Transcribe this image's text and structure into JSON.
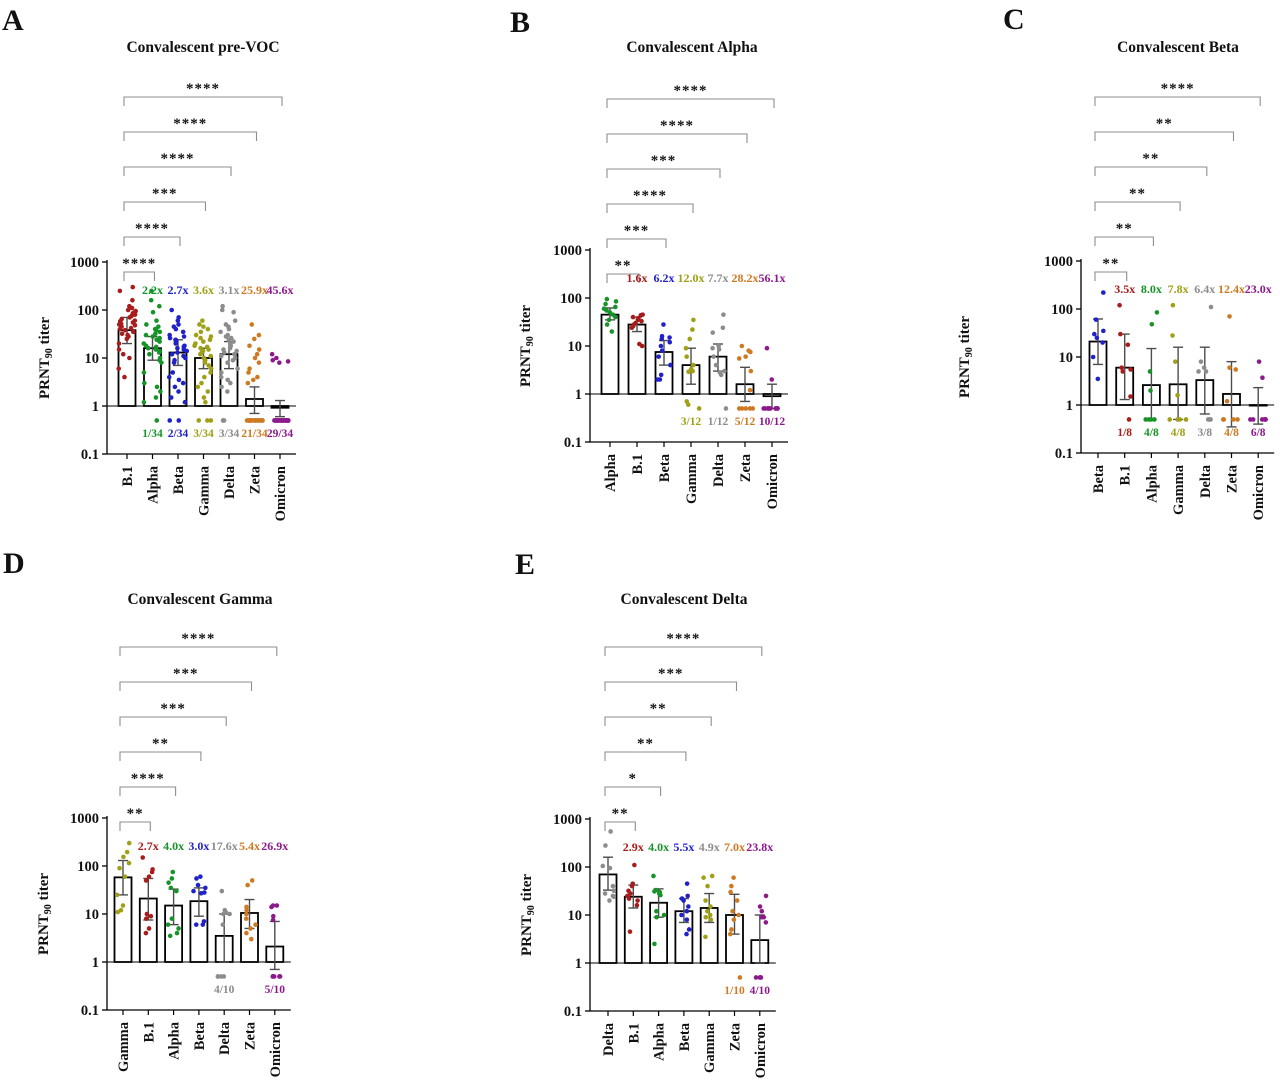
{
  "figure": {
    "background": "#ffffff",
    "ylabel_parts": {
      "pre": "PRNT",
      "sub": "90",
      "post": " titer"
    },
    "palette": {
      "b1": "#a81c1c",
      "alpha": "#169428",
      "beta": "#2121cc",
      "gamma": "#a0a016",
      "delta": "#8c8c8c",
      "zeta": "#cd7a22",
      "omicron": "#8c1a8c"
    }
  },
  "chart_data": [
    {
      "type": "bar",
      "panel_letter": "A",
      "title": "Convalescent pre-VOC",
      "ylabel": "PRNT90 titer",
      "yscale": "log",
      "ylim": [
        0.1,
        1000
      ],
      "yticks": [
        "1000",
        "100",
        "10",
        "1",
        "0.1"
      ],
      "categories": [
        "B.1",
        "Alpha",
        "Beta",
        "Gamma",
        "Delta",
        "Zeta",
        "Omicron"
      ],
      "dot_colors": [
        "#a81c1c",
        "#169428",
        "#2121cc",
        "#a0a016",
        "#8c8c8c",
        "#cd7a22",
        "#8c1a8c"
      ],
      "bar_values": [
        38,
        16,
        13,
        10,
        12,
        1.4,
        0.92
      ],
      "error_low": [
        20,
        9,
        7,
        6,
        6,
        0.7,
        0.6
      ],
      "error_high": [
        70,
        28,
        24,
        16,
        22,
        2.5,
        1.3
      ],
      "fold_changes": [
        null,
        "2.2x",
        "2.7x",
        "3.6x",
        "3.1x",
        "25.9x",
        "45.6x"
      ],
      "fold_colors": [
        null,
        "#169428",
        "#2121cc",
        "#a0a016",
        "#8c8c8c",
        "#cd7a22",
        "#8c1a8c"
      ],
      "fractions": [
        null,
        "1/34",
        "2/34",
        "3/34",
        "3/34",
        "21/34",
        "29/34"
      ],
      "fraction_colors": [
        null,
        "#169428",
        "#2121cc",
        "#a0a016",
        "#8c8c8c",
        "#cd7a22",
        "#8c1a8c"
      ],
      "significance_vs_first": [
        {
          "category": "Alpha",
          "stars": "****"
        },
        {
          "category": "Beta",
          "stars": "****"
        },
        {
          "category": "Gamma",
          "stars": "***"
        },
        {
          "category": "Delta",
          "stars": "****"
        },
        {
          "category": "Zeta",
          "stars": "****"
        },
        {
          "category": "Omicron",
          "stars": "****"
        }
      ],
      "points": [
        [
          300,
          250,
          160,
          120,
          110,
          100,
          95,
          90,
          85,
          80,
          75,
          70,
          65,
          60,
          58,
          55,
          52,
          50,
          48,
          45,
          42,
          40,
          38,
          35,
          32,
          30,
          28,
          25,
          20,
          15,
          12,
          10,
          6,
          4
        ],
        [
          250,
          160,
          120,
          90,
          60,
          50,
          45,
          40,
          38,
          35,
          32,
          30,
          28,
          26,
          24,
          22,
          20,
          18,
          17,
          16,
          15,
          14,
          13,
          12,
          10,
          9,
          8,
          5,
          3,
          2.5,
          2,
          1.5,
          1.2,
          0.5
        ],
        [
          100,
          70,
          60,
          50,
          45,
          40,
          35,
          30,
          28,
          26,
          24,
          22,
          20,
          18,
          17,
          16,
          15,
          14,
          13,
          12,
          11,
          10,
          9,
          8,
          5,
          4,
          3.5,
          3,
          2.5,
          2,
          1.5,
          1.2,
          0.5,
          0.5
        ],
        [
          60,
          50,
          45,
          40,
          35,
          30,
          28,
          26,
          24,
          22,
          20,
          18,
          17,
          16,
          15,
          14,
          13,
          12,
          11,
          10,
          9,
          8,
          7,
          6,
          5,
          4,
          3,
          2.5,
          2,
          1.5,
          1.2,
          0.5,
          0.5,
          0.5
        ],
        [
          120,
          100,
          90,
          60,
          50,
          45,
          40,
          35,
          30,
          28,
          26,
          24,
          22,
          20,
          18,
          16,
          15,
          14,
          13,
          12,
          11,
          10,
          9,
          8,
          6,
          5,
          4,
          3.5,
          3,
          2.5,
          2,
          0.5,
          0.5,
          0.5
        ],
        [
          50,
          30,
          25,
          18,
          15,
          12,
          10,
          8,
          6,
          5,
          4,
          3.5,
          3,
          0.5,
          0.5,
          0.5,
          0.5,
          0.5,
          0.5,
          0.5,
          0.5,
          0.5,
          0.5,
          0.5,
          0.5,
          0.5,
          0.5,
          0.5,
          0.5,
          0.5,
          0.5,
          0.5,
          0.5,
          0.5
        ],
        [
          12,
          10,
          9,
          8.5,
          8,
          0.5,
          0.5,
          0.5,
          0.5,
          0.5,
          0.5,
          0.5,
          0.5,
          0.5,
          0.5,
          0.5,
          0.5,
          0.5,
          0.5,
          0.5,
          0.5,
          0.5,
          0.5,
          0.5,
          0.5,
          0.5,
          0.5,
          0.5,
          0.5,
          0.5,
          0.5,
          0.5,
          0.5,
          0.5
        ]
      ]
    },
    {
      "type": "bar",
      "panel_letter": "B",
      "title": "Convalescent Alpha",
      "ylabel": "PRNT90 titer",
      "yscale": "log",
      "ylim": [
        0.1,
        1000
      ],
      "yticks": [
        "1000",
        "100",
        "10",
        "1",
        "0.1"
      ],
      "categories": [
        "Alpha",
        "B.1",
        "Beta",
        "Gamma",
        "Delta",
        "Zeta",
        "Omicron"
      ],
      "dot_colors": [
        "#169428",
        "#a81c1c",
        "#2121cc",
        "#a0a016",
        "#8c8c8c",
        "#cd7a22",
        "#8c1a8c"
      ],
      "bar_values": [
        45,
        28,
        7.5,
        4,
        6,
        1.6,
        0.9
      ],
      "error_low": [
        35,
        20,
        4,
        1.6,
        3,
        0.7,
        0.5
      ],
      "error_high": [
        62,
        40,
        13,
        9,
        11,
        3.6,
        1.6
      ],
      "fold_changes": [
        null,
        "1.6x",
        "6.2x",
        "12.0x",
        "7.7x",
        "28.2x",
        "56.1x"
      ],
      "fold_colors": [
        null,
        "#a81c1c",
        "#2121cc",
        "#a0a016",
        "#8c8c8c",
        "#cd7a22",
        "#8c1a8c"
      ],
      "fractions": [
        null,
        null,
        null,
        "3/12",
        "1/12",
        "5/12",
        "10/12"
      ],
      "fraction_colors": [
        null,
        null,
        null,
        "#a0a016",
        "#8c8c8c",
        "#cd7a22",
        "#8c1a8c"
      ],
      "significance_vs_first": [
        {
          "category": "B.1",
          "stars": "**"
        },
        {
          "category": "Beta",
          "stars": "***"
        },
        {
          "category": "Gamma",
          "stars": "****"
        },
        {
          "category": "Delta",
          "stars": "***"
        },
        {
          "category": "Zeta",
          "stars": "****"
        },
        {
          "category": "Omicron",
          "stars": "****"
        }
      ],
      "points": [
        [
          95,
          85,
          75,
          65,
          60,
          55,
          50,
          45,
          40,
          35,
          28,
          20
        ],
        [
          45,
          44,
          40,
          38,
          35,
          33,
          30,
          28,
          26,
          24,
          11,
          10
        ],
        [
          28,
          16,
          15,
          14,
          12,
          10,
          8,
          6,
          4,
          2.5,
          2,
          2
        ],
        [
          35,
          22,
          14,
          9,
          6,
          4,
          3.3,
          3,
          2.9,
          0.7,
          0.6,
          0.5
        ],
        [
          45,
          24,
          19,
          10,
          9,
          8.5,
          6,
          4,
          3,
          2.8,
          2.5,
          0.5
        ],
        [
          10,
          8,
          7.5,
          6,
          5.5,
          3,
          1.2,
          0.5,
          0.5,
          0.5,
          0.5,
          0.5
        ],
        [
          9,
          2,
          0.5,
          0.5,
          0.5,
          0.5,
          0.5,
          0.5,
          0.5,
          0.5,
          0.5,
          0.5
        ]
      ]
    },
    {
      "type": "bar",
      "panel_letter": "C",
      "title": "Convalescent Beta",
      "ylabel": "PRNT90 titer",
      "yscale": "log",
      "ylim": [
        0.1,
        1000
      ],
      "yticks": [
        "1000",
        "100",
        "10",
        "1",
        "0.1"
      ],
      "categories": [
        "Beta",
        "B.1",
        "Alpha",
        "Gamma",
        "Delta",
        "Zeta",
        "Omicron"
      ],
      "dot_colors": [
        "#2121cc",
        "#a81c1c",
        "#169428",
        "#a0a016",
        "#8c8c8c",
        "#cd7a22",
        "#8c1a8c"
      ],
      "bar_values": [
        21,
        6,
        2.6,
        2.7,
        3.3,
        1.7,
        1.0
      ],
      "error_low": [
        7,
        1.3,
        0.5,
        0.5,
        0.65,
        0.35,
        0.4
      ],
      "error_high": [
        62,
        30,
        15,
        16,
        16,
        8,
        2.3
      ],
      "fold_changes": [
        null,
        "3.5x",
        "8.0x",
        "7.8x",
        "6.4x",
        "12.4x",
        "23.0x"
      ],
      "fold_colors": [
        null,
        "#a81c1c",
        "#169428",
        "#a0a016",
        "#8c8c8c",
        "#cd7a22",
        "#8c1a8c"
      ],
      "fractions": [
        null,
        "1/8",
        "4/8",
        "4/8",
        "3/8",
        "4/8",
        "6/8"
      ],
      "fraction_colors": [
        null,
        "#a81c1c",
        "#169428",
        "#a0a016",
        "#8c8c8c",
        "#cd7a22",
        "#8c1a8c"
      ],
      "significance_vs_first": [
        {
          "category": "B.1",
          "stars": "**"
        },
        {
          "category": "Alpha",
          "stars": "**"
        },
        {
          "category": "Gamma",
          "stars": "**"
        },
        {
          "category": "Delta",
          "stars": "**"
        },
        {
          "category": "Zeta",
          "stars": "**"
        },
        {
          "category": "Omicron",
          "stars": "****"
        }
      ],
      "points": [
        [
          220,
          60,
          35,
          30,
          25,
          20,
          10,
          3.5
        ],
        [
          120,
          30,
          18,
          6,
          5.5,
          5,
          1.5,
          0.5
        ],
        [
          85,
          48,
          5,
          2,
          0.5,
          0.5,
          0.5,
          0.5
        ],
        [
          120,
          28,
          8,
          1.6,
          0.5,
          0.5,
          0.5,
          0.5
        ],
        [
          110,
          8,
          6,
          5,
          5,
          0.5,
          0.5,
          0.5
        ],
        [
          70,
          6,
          5.5,
          1.2,
          0.5,
          0.5,
          0.5,
          0.5
        ],
        [
          8,
          3.7,
          0.5,
          0.5,
          0.5,
          0.5,
          0.5,
          0.5
        ]
      ]
    },
    {
      "type": "bar",
      "panel_letter": "D",
      "title": "Convalescent Gamma",
      "ylabel": "PRNT90 titer",
      "yscale": "log",
      "ylim": [
        0.1,
        1000
      ],
      "yticks": [
        "1000",
        "100",
        "10",
        "1",
        "0.1"
      ],
      "categories": [
        "Gamma",
        "B.1",
        "Alpha",
        "Beta",
        "Delta",
        "Zeta",
        "Omicron"
      ],
      "dot_colors": [
        "#a0a016",
        "#a81c1c",
        "#169428",
        "#2121cc",
        "#8c8c8c",
        "#cd7a22",
        "#8c1a8c"
      ],
      "bar_values": [
        58,
        21,
        15,
        18.5,
        3.5,
        10.5,
        2.1
      ],
      "error_low": [
        25,
        7.5,
        6,
        9,
        1,
        5,
        0.7
      ],
      "error_high": [
        130,
        55,
        33,
        35,
        10,
        20,
        7
      ],
      "fold_changes": [
        null,
        "2.7x",
        "4.0x",
        "3.0x",
        "17.6x",
        "5.4x",
        "26.9x"
      ],
      "fold_colors": [
        null,
        "#a81c1c",
        "#169428",
        "#2121cc",
        "#8c8c8c",
        "#cd7a22",
        "#8c1a8c"
      ],
      "fractions": [
        null,
        null,
        null,
        null,
        "4/10",
        null,
        "5/10"
      ],
      "fraction_colors": [
        null,
        null,
        null,
        null,
        "#8c8c8c",
        null,
        "#8c1a8c"
      ],
      "significance_vs_first": [
        {
          "category": "B.1",
          "stars": "**"
        },
        {
          "category": "Alpha",
          "stars": "****"
        },
        {
          "category": "Beta",
          "stars": "**"
        },
        {
          "category": "Delta",
          "stars": "***"
        },
        {
          "category": "Zeta",
          "stars": "***"
        },
        {
          "category": "Omicron",
          "stars": "****"
        }
      ],
      "points": [
        [
          300,
          195,
          155,
          115,
          90,
          60,
          25,
          15,
          12,
          11
        ],
        [
          150,
          85,
          75,
          60,
          50,
          10,
          9,
          8,
          5,
          4
        ],
        [
          75,
          55,
          45,
          35,
          30,
          8,
          6,
          5,
          4,
          3.5
        ],
        [
          60,
          55,
          40,
          35,
          30,
          28,
          27,
          7,
          6,
          6
        ],
        [
          30,
          12,
          11,
          10,
          10,
          6,
          0.5,
          0.5,
          0.5,
          0.5
        ],
        [
          50,
          40,
          14,
          12,
          10,
          8,
          6,
          5,
          4,
          3
        ],
        [
          15,
          15,
          14,
          9,
          7.5,
          0.5,
          0.5,
          0.5,
          0.5,
          0.5
        ]
      ]
    },
    {
      "type": "bar",
      "panel_letter": "E",
      "title": "Convalescent Delta",
      "ylabel": "PRNT90 titer",
      "yscale": "log",
      "ylim": [
        0.1,
        1000
      ],
      "yticks": [
        "1000",
        "100",
        "10",
        "1",
        "0.1"
      ],
      "categories": [
        "Delta",
        "B.1",
        "Alpha",
        "Beta",
        "Gamma",
        "Zeta",
        "Omicron"
      ],
      "dot_colors": [
        "#8c8c8c",
        "#a81c1c",
        "#169428",
        "#2121cc",
        "#a0a016",
        "#cd7a22",
        "#8c1a8c"
      ],
      "bar_values": [
        70,
        24,
        18,
        12,
        14,
        10,
        3
      ],
      "error_low": [
        33,
        14,
        9,
        7,
        7,
        4,
        1
      ],
      "error_high": [
        160,
        42,
        35,
        22,
        28,
        27,
        10
      ],
      "fold_changes": [
        null,
        "2.9x",
        "4.0x",
        "5.5x",
        "4.9x",
        "7.0x",
        "23.8x"
      ],
      "fold_colors": [
        null,
        "#a81c1c",
        "#169428",
        "#2121cc",
        "#8c8c8c",
        "#cd7a22",
        "#8c1a8c"
      ],
      "fractions": [
        null,
        null,
        null,
        null,
        null,
        "1/10",
        "4/10"
      ],
      "fraction_colors": [
        null,
        null,
        null,
        null,
        null,
        "#cd7a22",
        "#8c1a8c"
      ],
      "significance_vs_first": [
        {
          "category": "B.1",
          "stars": "**"
        },
        {
          "category": "Alpha",
          "stars": "*"
        },
        {
          "category": "Beta",
          "stars": "**"
        },
        {
          "category": "Gamma",
          "stars": "**"
        },
        {
          "category": "Zeta",
          "stars": "***"
        },
        {
          "category": "Omicron",
          "stars": "****"
        }
      ],
      "points": [
        [
          550,
          280,
          105,
          95,
          40,
          32,
          28,
          25,
          24,
          20
        ],
        [
          110,
          45,
          40,
          32,
          28,
          25,
          22,
          20,
          16,
          4.5
        ],
        [
          65,
          33,
          31,
          30,
          28,
          26,
          12,
          10,
          9,
          2.5
        ],
        [
          45,
          25,
          22,
          20,
          15,
          12,
          10,
          8,
          5,
          4
        ],
        [
          65,
          60,
          40,
          20,
          15,
          12,
          10,
          9,
          8,
          3.5
        ],
        [
          60,
          40,
          30,
          20,
          12,
          10,
          8,
          5,
          4,
          0.5
        ],
        [
          25,
          15,
          12,
          9,
          9,
          7,
          0.5,
          0.5,
          0.5,
          0.5
        ]
      ]
    }
  ]
}
